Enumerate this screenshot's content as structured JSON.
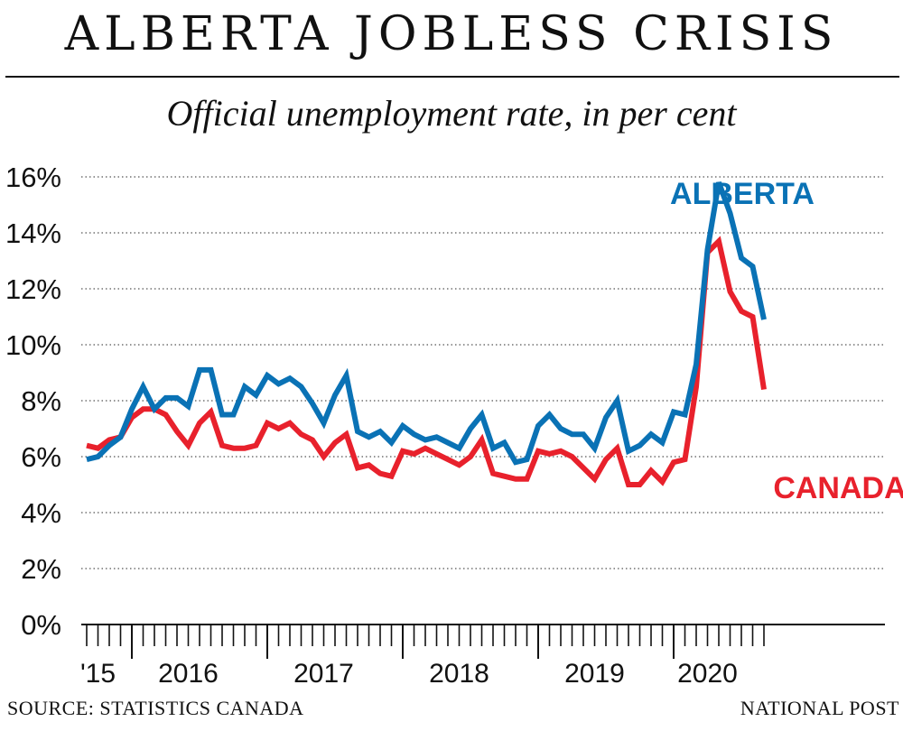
{
  "header": {
    "title": "ALBERTA JOBLESS CRISIS",
    "subtitle": "Official unemployment rate, in per cent"
  },
  "footer": {
    "source": "SOURCE: STATISTICS CANADA",
    "credit": "NATIONAL POST"
  },
  "chart_data": {
    "type": "line",
    "title": "ALBERTA JOBLESS CRISIS",
    "subtitle": "Official unemployment rate, in per cent",
    "xlabel": "",
    "ylabel": "",
    "ylim": [
      0,
      16
    ],
    "yticks": [
      0,
      2,
      4,
      6,
      8,
      10,
      12,
      14,
      16
    ],
    "ytick_labels": [
      "0%",
      "2%",
      "4%",
      "6%",
      "8%",
      "10%",
      "12%",
      "14%",
      "16%"
    ],
    "grid": "horizontal dotted",
    "x_start": "2015-09",
    "x_end": "2020-08",
    "xtick_labels": [
      {
        "label": "'15",
        "month": "2015-10"
      },
      {
        "label": "2016",
        "month": "2016-06"
      },
      {
        "label": "2017",
        "month": "2017-06"
      },
      {
        "label": "2018",
        "month": "2018-06"
      },
      {
        "label": "2019",
        "month": "2019-06"
      },
      {
        "label": "2020",
        "month": "2020-04"
      }
    ],
    "series": [
      {
        "name": "ALBERTA",
        "color": "#0a72b5",
        "values": [
          5.9,
          6.0,
          6.4,
          6.7,
          7.7,
          8.5,
          7.7,
          8.1,
          8.1,
          7.8,
          9.1,
          9.1,
          7.5,
          7.5,
          8.5,
          8.2,
          8.9,
          8.6,
          8.8,
          8.5,
          7.9,
          7.2,
          8.2,
          8.9,
          6.9,
          6.7,
          6.9,
          6.5,
          7.1,
          6.8,
          6.6,
          6.7,
          6.5,
          6.3,
          7.0,
          7.5,
          6.3,
          6.5,
          5.8,
          5.9,
          7.1,
          7.5,
          7.0,
          6.8,
          6.8,
          6.3,
          7.4,
          8.0,
          6.2,
          6.4,
          6.8,
          6.5,
          7.6,
          7.5,
          9.3,
          13.4,
          15.8,
          14.7,
          13.1,
          12.8,
          10.9
        ]
      },
      {
        "name": "CANADA",
        "color": "#e8212c",
        "values": [
          6.4,
          6.3,
          6.6,
          6.7,
          7.4,
          7.7,
          7.7,
          7.5,
          6.9,
          6.4,
          7.2,
          7.6,
          6.4,
          6.3,
          6.3,
          6.4,
          7.2,
          7.0,
          7.2,
          6.8,
          6.6,
          6.0,
          6.5,
          6.8,
          5.6,
          5.7,
          5.4,
          5.3,
          6.2,
          6.1,
          6.3,
          6.1,
          5.9,
          5.7,
          6.0,
          6.6,
          5.4,
          5.3,
          5.2,
          5.2,
          6.2,
          6.1,
          6.2,
          6.0,
          5.6,
          5.2,
          5.9,
          6.3,
          5.0,
          5.0,
          5.5,
          5.1,
          5.8,
          5.9,
          8.5,
          13.3,
          13.7,
          11.9,
          11.2,
          11.0,
          8.4
        ]
      }
    ],
    "annotations": [
      {
        "text": "ALBERTA",
        "series": "ALBERTA"
      },
      {
        "text": "CANADA",
        "series": "CANADA"
      }
    ]
  }
}
